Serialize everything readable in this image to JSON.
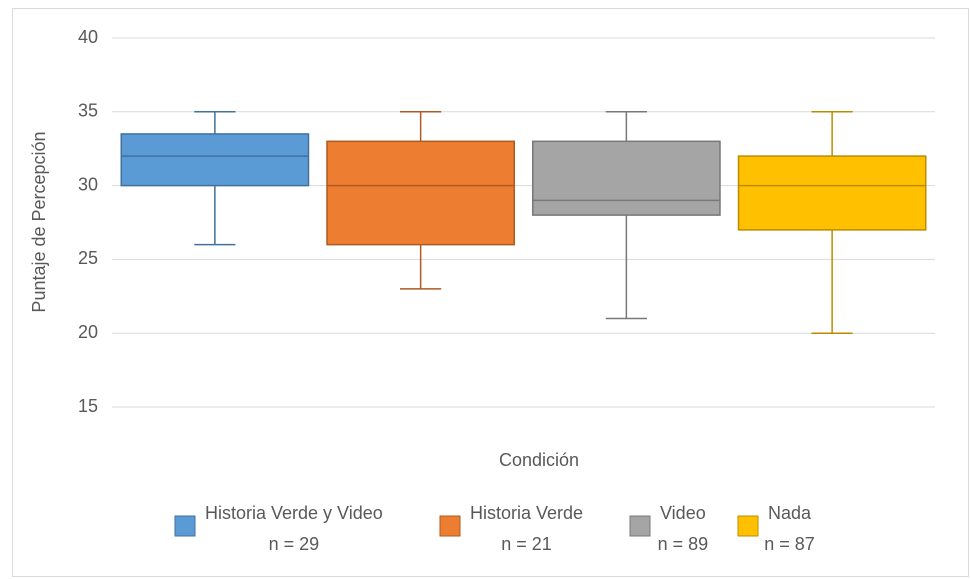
{
  "chart_data": {
    "type": "box",
    "x_label": "Condición",
    "y_label": "Puntaje de Percepción",
    "ylim": [
      15,
      40
    ],
    "yticks": [
      15,
      20,
      25,
      30,
      35,
      40
    ],
    "grid": true,
    "legend": "bottom",
    "series": [
      {
        "name": "Historia Verde y Video",
        "note": "n = 29",
        "color": "#5b9bd5",
        "edge": "#41719c",
        "min": 26,
        "q1": 30,
        "median": 32,
        "q3": 33.5,
        "max": 35
      },
      {
        "name": "Historia Verde",
        "note": "n = 21",
        "color": "#ed7d31",
        "edge": "#ae5a21",
        "min": 23,
        "q1": 26,
        "median": 30,
        "q3": 33,
        "max": 35
      },
      {
        "name": "Video",
        "note": "n = 89",
        "color": "#a5a5a5",
        "edge": "#787878",
        "min": 21,
        "q1": 28,
        "median": 29,
        "q3": 33,
        "max": 35
      },
      {
        "name": "Nada",
        "note": "n = 87",
        "color": "#ffc000",
        "edge": "#bc8c00",
        "min": 20,
        "q1": 27,
        "median": 30,
        "q3": 32,
        "max": 35
      }
    ]
  }
}
